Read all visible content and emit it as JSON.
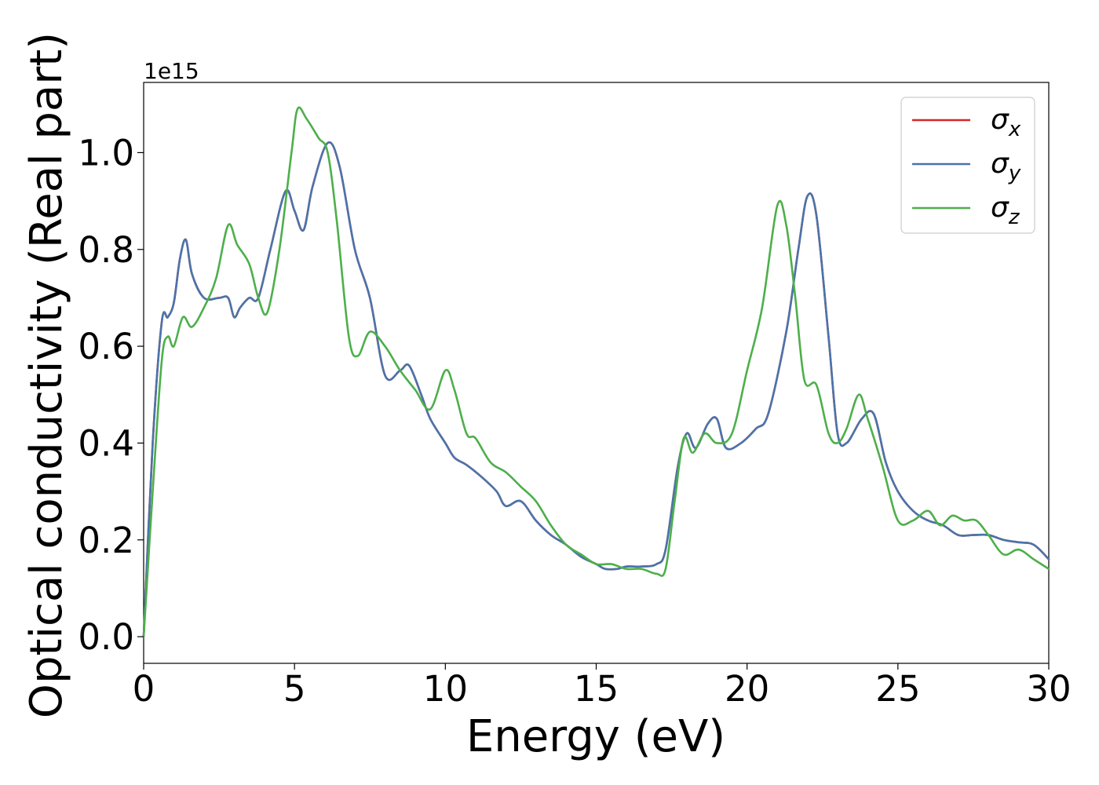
{
  "chart_data": {
    "type": "line",
    "xlabel": "Energy (eV)",
    "ylabel": "Optical conductivity (Real part)",
    "y_offset_label": "1e15",
    "xlim": [
      0,
      30
    ],
    "ylim": [
      -0.055,
      1.145
    ],
    "x_ticks": [
      0,
      5,
      10,
      15,
      20,
      25,
      30
    ],
    "x_tick_labels": [
      "0",
      "5",
      "10",
      "15",
      "20",
      "25",
      "30"
    ],
    "y_ticks": [
      0.0,
      0.2,
      0.4,
      0.6,
      0.8,
      1.0
    ],
    "y_tick_labels": [
      "0.0",
      "0.2",
      "0.4",
      "0.6",
      "0.8",
      "1.0"
    ],
    "grid": false,
    "legend_position": "top-right",
    "series": [
      {
        "name": "σx",
        "label_base": "σ",
        "label_sub": "x",
        "color": "#d62728",
        "x": [
          0,
          0.3,
          0.6,
          0.8,
          1.0,
          1.2,
          1.4,
          1.6,
          2.0,
          2.5,
          2.8,
          3.0,
          3.2,
          3.5,
          3.8,
          4.2,
          4.7,
          5.0,
          5.3,
          5.6,
          6.1,
          6.5,
          7.0,
          7.5,
          8.0,
          8.5,
          8.8,
          9.2,
          9.5,
          10.0,
          10.3,
          10.7,
          11.2,
          11.7,
          12.0,
          12.5,
          13.0,
          13.5,
          14.0,
          14.5,
          15.0,
          15.3,
          15.7,
          16.0,
          16.5,
          17.0,
          17.3,
          17.7,
          18.0,
          18.3,
          18.7,
          19.0,
          19.3,
          19.8,
          20.3,
          20.7,
          21.3,
          21.7,
          22.0,
          22.3,
          22.7,
          23.0,
          23.3,
          23.8,
          24.2,
          24.6,
          25.0,
          25.5,
          26.0,
          26.5,
          27.0,
          27.5,
          28.0,
          28.5,
          29.0,
          29.5,
          30.0
        ],
        "y": [
          0.0,
          0.4,
          0.65,
          0.66,
          0.69,
          0.78,
          0.82,
          0.75,
          0.7,
          0.7,
          0.7,
          0.66,
          0.68,
          0.7,
          0.7,
          0.8,
          0.92,
          0.88,
          0.84,
          0.93,
          1.02,
          0.97,
          0.8,
          0.7,
          0.54,
          0.55,
          0.56,
          0.5,
          0.45,
          0.4,
          0.37,
          0.355,
          0.33,
          0.3,
          0.27,
          0.28,
          0.24,
          0.21,
          0.19,
          0.165,
          0.15,
          0.14,
          0.14,
          0.145,
          0.145,
          0.15,
          0.18,
          0.35,
          0.42,
          0.39,
          0.44,
          0.45,
          0.39,
          0.4,
          0.43,
          0.46,
          0.63,
          0.8,
          0.91,
          0.87,
          0.62,
          0.42,
          0.4,
          0.45,
          0.46,
          0.36,
          0.3,
          0.26,
          0.24,
          0.23,
          0.21,
          0.21,
          0.21,
          0.2,
          0.195,
          0.19,
          0.16
        ]
      },
      {
        "name": "σy",
        "label_base": "σ",
        "label_sub": "y",
        "color": "#4a74aa",
        "x": [
          0,
          0.3,
          0.6,
          0.8,
          1.0,
          1.2,
          1.4,
          1.6,
          2.0,
          2.5,
          2.8,
          3.0,
          3.2,
          3.5,
          3.8,
          4.2,
          4.7,
          5.0,
          5.3,
          5.6,
          6.1,
          6.5,
          7.0,
          7.5,
          8.0,
          8.5,
          8.8,
          9.2,
          9.5,
          10.0,
          10.3,
          10.7,
          11.2,
          11.7,
          12.0,
          12.5,
          13.0,
          13.5,
          14.0,
          14.5,
          15.0,
          15.3,
          15.7,
          16.0,
          16.5,
          17.0,
          17.3,
          17.7,
          18.0,
          18.3,
          18.7,
          19.0,
          19.3,
          19.8,
          20.3,
          20.7,
          21.3,
          21.7,
          22.0,
          22.3,
          22.7,
          23.0,
          23.3,
          23.8,
          24.2,
          24.6,
          25.0,
          25.5,
          26.0,
          26.5,
          27.0,
          27.5,
          28.0,
          28.5,
          29.0,
          29.5,
          30.0
        ],
        "y": [
          0.0,
          0.4,
          0.65,
          0.66,
          0.69,
          0.78,
          0.82,
          0.75,
          0.7,
          0.7,
          0.7,
          0.66,
          0.68,
          0.7,
          0.7,
          0.8,
          0.92,
          0.88,
          0.84,
          0.93,
          1.02,
          0.97,
          0.8,
          0.7,
          0.54,
          0.55,
          0.56,
          0.5,
          0.45,
          0.4,
          0.37,
          0.355,
          0.33,
          0.3,
          0.27,
          0.28,
          0.24,
          0.21,
          0.19,
          0.165,
          0.15,
          0.14,
          0.14,
          0.145,
          0.145,
          0.15,
          0.18,
          0.35,
          0.42,
          0.39,
          0.44,
          0.45,
          0.39,
          0.4,
          0.43,
          0.46,
          0.63,
          0.8,
          0.91,
          0.87,
          0.62,
          0.42,
          0.4,
          0.45,
          0.46,
          0.36,
          0.3,
          0.26,
          0.24,
          0.23,
          0.21,
          0.21,
          0.21,
          0.2,
          0.195,
          0.19,
          0.16
        ]
      },
      {
        "name": "σz",
        "label_base": "σ",
        "label_sub": "z",
        "color": "#4daf4a",
        "x": [
          0,
          0.3,
          0.6,
          0.8,
          1.0,
          1.3,
          1.6,
          2.0,
          2.4,
          2.8,
          3.1,
          3.5,
          3.8,
          4.1,
          4.5,
          4.9,
          5.1,
          5.4,
          5.8,
          6.1,
          6.4,
          6.8,
          7.1,
          7.5,
          8.0,
          8.5,
          9.0,
          9.5,
          10.0,
          10.3,
          10.7,
          11.0,
          11.5,
          12.0,
          12.5,
          13.0,
          13.5,
          14.0,
          14.5,
          15.0,
          15.5,
          16.0,
          16.5,
          17.0,
          17.3,
          17.6,
          17.9,
          18.2,
          18.6,
          19.0,
          19.5,
          20.0,
          20.5,
          21.0,
          21.3,
          21.6,
          21.9,
          22.3,
          22.7,
          23.0,
          23.3,
          23.7,
          24.0,
          24.5,
          25.0,
          25.5,
          26.0,
          26.4,
          26.8,
          27.2,
          27.6,
          28.0,
          28.5,
          29.0,
          29.5,
          30.0
        ],
        "y": [
          0.0,
          0.3,
          0.57,
          0.62,
          0.6,
          0.66,
          0.64,
          0.68,
          0.74,
          0.85,
          0.81,
          0.77,
          0.7,
          0.67,
          0.8,
          1.0,
          1.09,
          1.07,
          1.03,
          1.0,
          0.86,
          0.62,
          0.58,
          0.63,
          0.6,
          0.55,
          0.51,
          0.47,
          0.55,
          0.51,
          0.42,
          0.41,
          0.36,
          0.34,
          0.31,
          0.28,
          0.23,
          0.19,
          0.17,
          0.15,
          0.15,
          0.14,
          0.14,
          0.13,
          0.14,
          0.28,
          0.41,
          0.38,
          0.42,
          0.4,
          0.42,
          0.55,
          0.68,
          0.89,
          0.85,
          0.7,
          0.53,
          0.52,
          0.42,
          0.4,
          0.43,
          0.5,
          0.45,
          0.35,
          0.24,
          0.24,
          0.26,
          0.23,
          0.25,
          0.24,
          0.24,
          0.21,
          0.17,
          0.18,
          0.16,
          0.14
        ]
      }
    ]
  }
}
